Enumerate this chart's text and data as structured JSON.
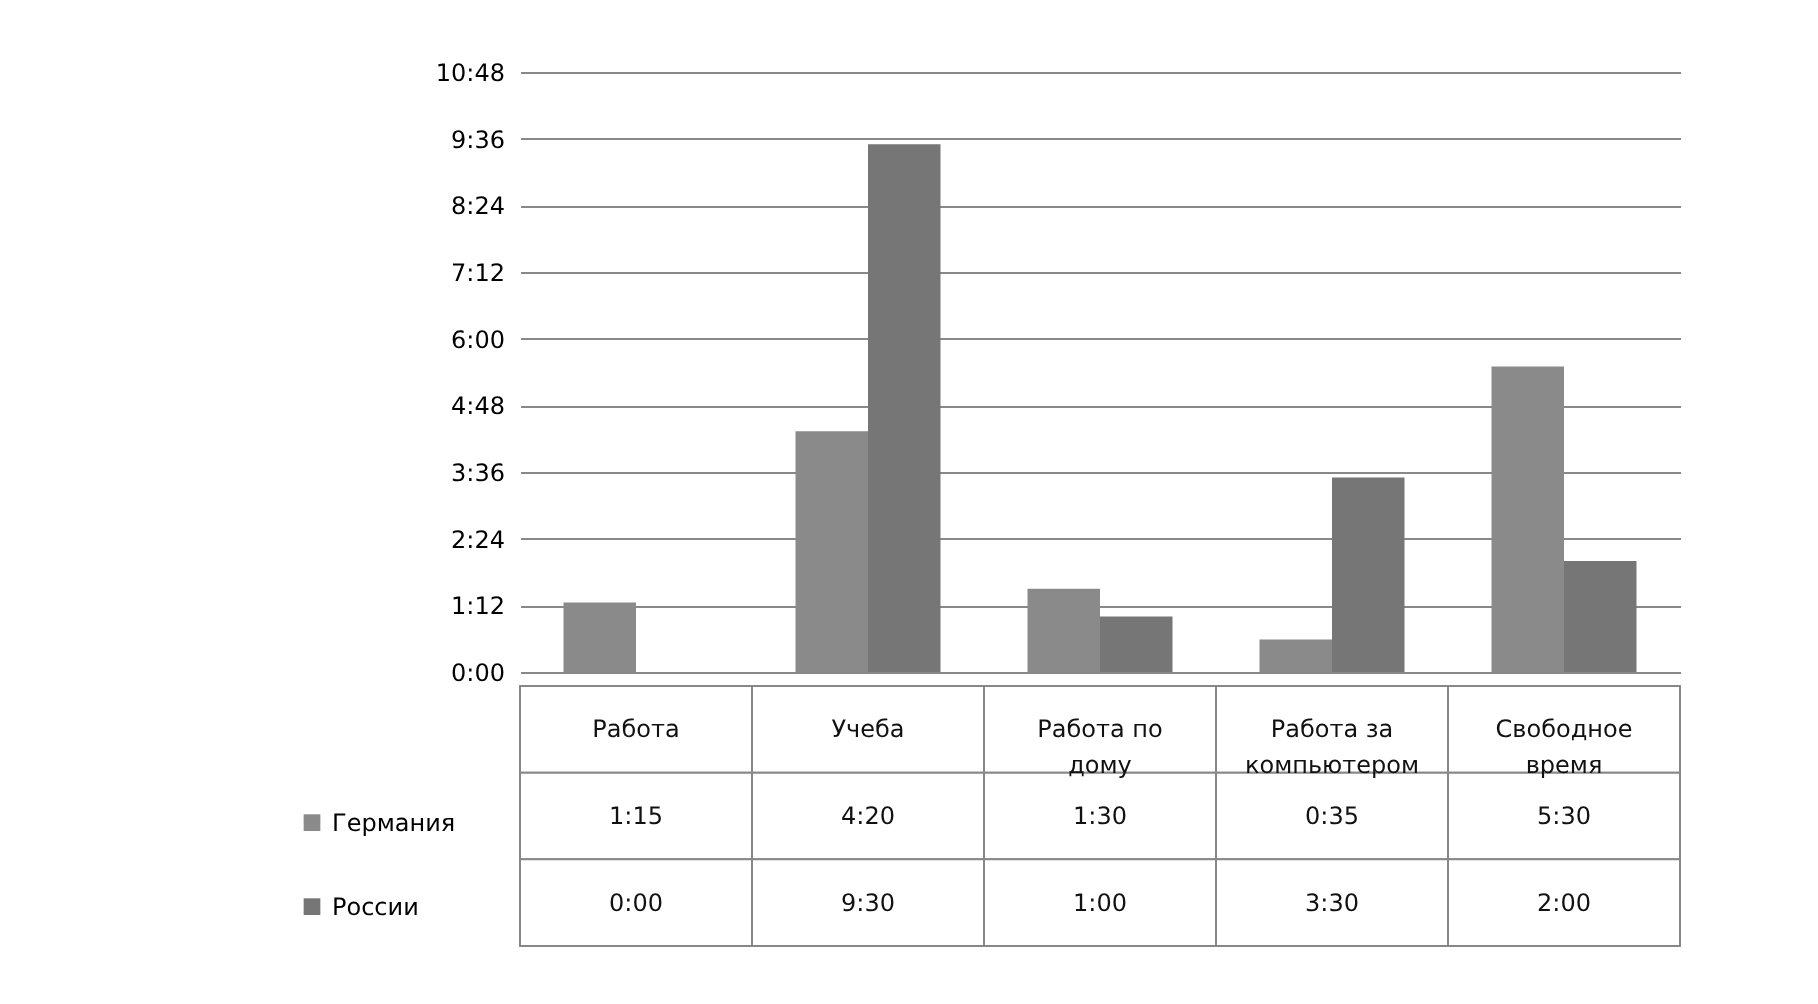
{
  "chart_data": {
    "type": "bar",
    "categories": [
      "Работа",
      "Учеба",
      "Работа по дому",
      "Работа за компьютером",
      "Свободное время"
    ],
    "series": [
      {
        "name": "Германия",
        "color": "#8a8a8a",
        "values": [
          1.25,
          4.333,
          1.5,
          0.583,
          5.5
        ],
        "value_labels": [
          "1:15",
          "4:20",
          "1:30",
          "0:35",
          "5:30"
        ]
      },
      {
        "name": "России",
        "color": "#767676",
        "values": [
          0,
          9.5,
          1,
          3.5,
          2
        ],
        "value_labels": [
          "0:00",
          "9:30",
          "1:00",
          "3:30",
          "2:00"
        ]
      }
    ],
    "ylim": [
      0,
      10.8
    ],
    "yticks": [
      {
        "value": 0,
        "label": "0:00"
      },
      {
        "value": 1.2,
        "label": "1:12"
      },
      {
        "value": 2.4,
        "label": "2:24"
      },
      {
        "value": 3.6,
        "label": "3:36"
      },
      {
        "value": 4.8,
        "label": "4:48"
      },
      {
        "value": 6,
        "label": "6:00"
      },
      {
        "value": 7.2,
        "label": "7:12"
      },
      {
        "value": 8.4,
        "label": "8:24"
      },
      {
        "value": 9.6,
        "label": "9:36"
      },
      {
        "value": 10.8,
        "label": "10:48"
      }
    ],
    "grid": "y",
    "legend": "bottom"
  }
}
